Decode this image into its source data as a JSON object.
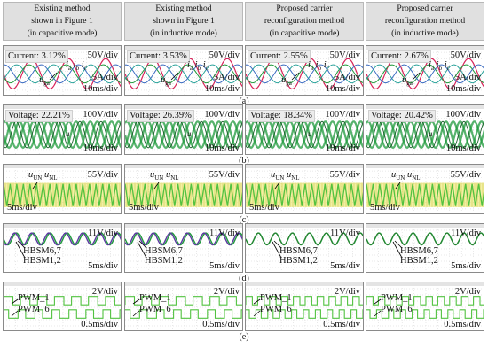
{
  "headers": [
    [
      "Existing method",
      "shown in Figure 1",
      "(in capacitive mode)"
    ],
    [
      "Existing method",
      "shown in Figure 1",
      "(in inductive mode)"
    ],
    [
      "Proposed carrier",
      "reconfiguration method",
      "(in capacitive mode)"
    ],
    [
      "Proposed carrier",
      "reconfiguration method",
      "(in inductive mode)"
    ]
  ],
  "row_labels": [
    "(a)",
    "(b)",
    "(c)",
    "(d)",
    "(e)"
  ],
  "rows": [
    {
      "id": "a",
      "scale_top": "50V/div",
      "scale_mid": "5A/div",
      "scale_bottom": "10ms/div",
      "signal_label_a": "u",
      "signal_label_a_sub": "ga",
      "signal_label_b": "i",
      "signal_label_b_sub": "a",
      "signal_label_c": "i",
      "signal_label_c_sub": "b",
      "signal_label_d": "i",
      "signal_label_d_sub": "c",
      "thd_prefix": "Current:",
      "thd_values": [
        "3.12%",
        "3.53%",
        "2.55%",
        "2.67%"
      ]
    },
    {
      "id": "b",
      "scale_top": "100V/div",
      "scale_bottom": "10ms/div",
      "signal_labels": "u",
      "thd_prefix": "Voltage:",
      "thd_values": [
        "22.21%",
        "26.39%",
        "18.34%",
        "20.42%"
      ]
    },
    {
      "id": "c",
      "scale_top": "55V/div",
      "scale_bottom": "5ms/div",
      "signal_label_a": "u",
      "signal_label_a_sub": "UN",
      "signal_label_b": "u",
      "signal_label_b_sub": "NL"
    },
    {
      "id": "d",
      "scale_top": "11V/div",
      "scale_bottom": "5ms/div",
      "label_upper": "HBSM6,7",
      "label_lower": "HBSM1,2"
    },
    {
      "id": "e",
      "scale_top": "2V/div",
      "scale_bottom": "0.5ms/div",
      "label_upper": "PWM_1",
      "label_lower": "PWM_6"
    }
  ],
  "colors": {
    "header_bg": "#e0e0e0",
    "trace_red": "#d8245a",
    "trace_green": "#1f9a3c",
    "trace_teal": "#2aa39b",
    "trace_purple": "#5b3aa0",
    "trace_yellow": "#e9e35a",
    "trace_lime": "#52c240",
    "grid": "#c8c8c8"
  }
}
